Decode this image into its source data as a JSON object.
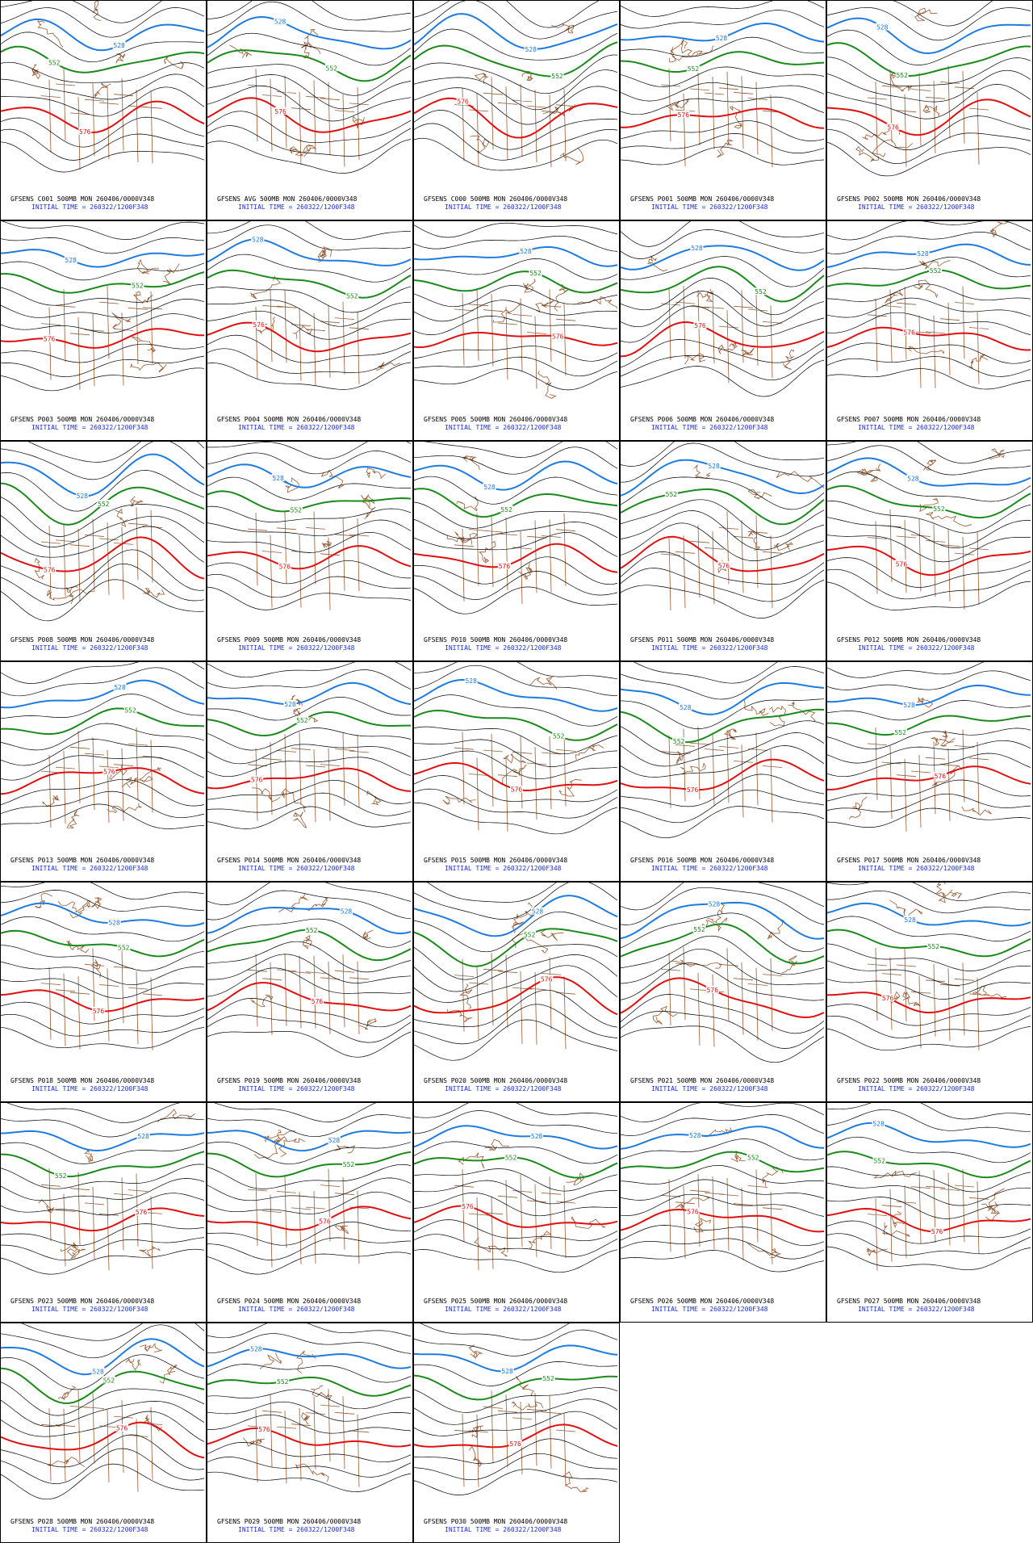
{
  "panels": [
    {
      "title": "GFSENS C001 500MB MON 260406/0000V348",
      "init": "INITIAL TIME = 260322/1200F348",
      "labels": [
        "528",
        "552",
        "576"
      ]
    },
    {
      "title": "GFSENS AVG 500MB MON 260406/0000V348",
      "init": "INITIAL TIME = 260322/1200F348",
      "labels": [
        "528",
        "552",
        "576"
      ]
    },
    {
      "title": "GFSENS C000 500MB MON 260406/0000V348",
      "init": "INITIAL TIME = 260322/1200F348",
      "labels": [
        "528",
        "552",
        "576"
      ]
    },
    {
      "title": "GFSENS P001 500MB MON 260406/0000V348",
      "init": "INITIAL TIME = 260322/1200F348",
      "labels": [
        "528",
        "552",
        "576"
      ]
    },
    {
      "title": "GFSENS P002 500MB MON 260406/0000V348",
      "init": "INITIAL TIME = 260322/1200F348",
      "labels": [
        "528",
        "552",
        "576"
      ]
    },
    {
      "title": "GFSENS P003 500MB MON 260406/0000V348",
      "init": "INITIAL TIME = 260322/1200F348",
      "labels": [
        "528",
        "552",
        "576"
      ]
    },
    {
      "title": "GFSENS P004 500MB MON 260406/0000V348",
      "init": "INITIAL TIME = 260322/1200F348",
      "labels": [
        "528",
        "552",
        "576"
      ]
    },
    {
      "title": "GFSENS P005 500MB MON 260406/0000V348",
      "init": "INITIAL TIME = 260322/1200F348",
      "labels": [
        "528",
        "552",
        "576"
      ]
    },
    {
      "title": "GFSENS P006 500MB MON 260406/0000V348",
      "init": "INITIAL TIME = 260322/1200F348",
      "labels": [
        "528",
        "552",
        "576"
      ]
    },
    {
      "title": "GFSENS P007 500MB MON 260406/0000V348",
      "init": "INITIAL TIME = 260322/1200F348",
      "labels": [
        "528",
        "552",
        "576"
      ]
    },
    {
      "title": "GFSENS P008 500MB MON 260406/0000V348",
      "init": "INITIAL TIME = 260322/1200F348",
      "labels": [
        "528",
        "552",
        "576"
      ]
    },
    {
      "title": "GFSENS P009 500MB MON 260406/0000V348",
      "init": "INITIAL TIME = 260322/1200F348",
      "labels": [
        "528",
        "552",
        "576"
      ]
    },
    {
      "title": "GFSENS P010 500MB MON 260406/0000V348",
      "init": "INITIAL TIME = 260322/1200F348",
      "labels": [
        "528",
        "552",
        "576"
      ]
    },
    {
      "title": "GFSENS P011 500MB MON 260406/0000V348",
      "init": "INITIAL TIME = 260322/1200F348",
      "labels": [
        "528",
        "552",
        "576"
      ]
    },
    {
      "title": "GFSENS P012 500MB MON 260406/0000V348",
      "init": "INITIAL TIME = 260322/1200F348",
      "labels": [
        "528",
        "552",
        "576"
      ]
    },
    {
      "title": "GFSENS P013 500MB MON 260406/0000V348",
      "init": "INITIAL TIME = 260322/1200F348",
      "labels": [
        "528",
        "552",
        "576"
      ]
    },
    {
      "title": "GFSENS P014 500MB MON 260406/0000V348",
      "init": "INITIAL TIME = 260322/1200F348",
      "labels": [
        "528",
        "552",
        "576"
      ]
    },
    {
      "title": "GFSENS P015 500MB MON 260406/0000V348",
      "init": "INITIAL TIME = 260322/1200F348",
      "labels": [
        "528",
        "552",
        "576"
      ]
    },
    {
      "title": "GFSENS P016 500MB MON 260406/0000V348",
      "init": "INITIAL TIME = 260322/1200F348",
      "labels": [
        "528",
        "552",
        "576"
      ]
    },
    {
      "title": "GFSENS P017 500MB MON 260406/0000V348",
      "init": "INITIAL TIME = 260322/1200F348",
      "labels": [
        "528",
        "552",
        "576"
      ]
    },
    {
      "title": "GFSENS P018 500MB MON 260406/0000V348",
      "init": "INITIAL TIME = 260322/1200F348",
      "labels": [
        "528",
        "552",
        "576"
      ]
    },
    {
      "title": "GFSENS P019 500MB MON 260406/0000V348",
      "init": "INITIAL TIME = 260322/1200F348",
      "labels": [
        "528",
        "552",
        "576"
      ]
    },
    {
      "title": "GFSENS P020 500MB MON 260406/0000V348",
      "init": "INITIAL TIME = 260322/1200F348",
      "labels": [
        "528",
        "552",
        "576"
      ]
    },
    {
      "title": "GFSENS P021 500MB MON 260406/0000V348",
      "init": "INITIAL TIME = 260322/1200F348",
      "labels": [
        "528",
        "552",
        "576"
      ]
    },
    {
      "title": "GFSENS P022 500MB MON 260406/0000V348",
      "init": "INITIAL TIME = 260322/1200F348",
      "labels": [
        "528",
        "552",
        "576"
      ]
    },
    {
      "title": "GFSENS P023 500MB MON 260406/0000V348",
      "init": "INITIAL TIME = 260322/1200F348",
      "labels": [
        "528",
        "552",
        "576"
      ]
    },
    {
      "title": "GFSENS P024 500MB MON 260406/0000V348",
      "init": "INITIAL TIME = 260322/1200F348",
      "labels": [
        "528",
        "552",
        "576"
      ]
    },
    {
      "title": "GFSENS P025 500MB MON 260406/0000V348",
      "init": "INITIAL TIME = 260322/1200F348",
      "labels": [
        "528",
        "552",
        "576"
      ]
    },
    {
      "title": "GFSENS P026 500MB MON 260406/0000V348",
      "init": "INITIAL TIME = 260322/1200F348",
      "labels": [
        "528",
        "552",
        "576"
      ]
    },
    {
      "title": "GFSENS P027 500MB MON 260406/0000V348",
      "init": "INITIAL TIME = 260322/1200F348",
      "labels": [
        "528",
        "552",
        "576"
      ]
    },
    {
      "title": "GFSENS P028 500MB MON 260406/0000V348",
      "init": "INITIAL TIME = 260322/1200F348",
      "labels": [
        "528",
        "552",
        "576"
      ]
    },
    {
      "title": "GFSENS P029 500MB MON 260406/0000V348",
      "init": "INITIAL TIME = 260322/1200F348",
      "labels": [
        "528",
        "552",
        "576"
      ]
    },
    {
      "title": "GFSENS P030 500MB MON 260406/0000V348",
      "init": "INITIAL TIME = 260322/1200F348",
      "labels": [
        "528",
        "552",
        "576"
      ]
    }
  ]
}
